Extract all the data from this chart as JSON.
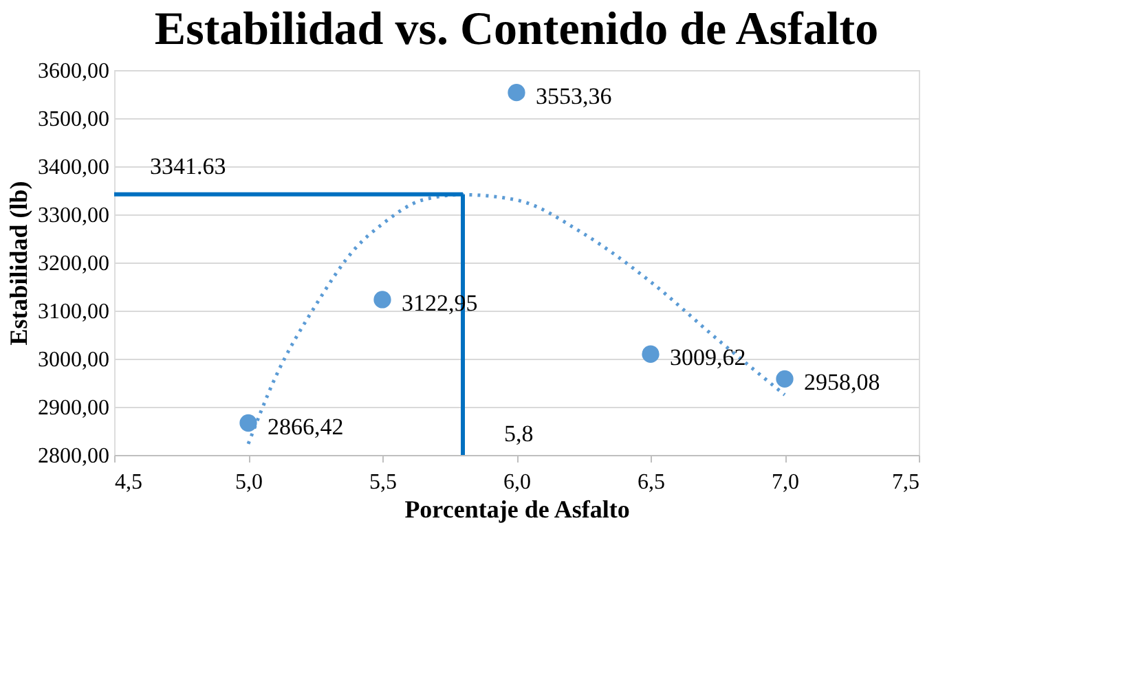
{
  "chart_data": {
    "type": "scatter",
    "title": "Estabilidad vs. Contenido de Asfalto",
    "xlabel": "Porcentaje de Asfalto",
    "ylabel": "Estabilidad (lb)",
    "x": [
      5.0,
      5.5,
      6.0,
      6.5,
      7.0
    ],
    "series": [
      {
        "color": "#5b9bd5",
        "values": [
          2866.42,
          3122.95,
          3553.36,
          3009.62,
          2958.08
        ],
        "value_labels": [
          "2866,42",
          "3122,95",
          "3553,36",
          "3009,62",
          "2958,08"
        ],
        "marker": "circle"
      },
      {
        "type": "line",
        "color": "#5b9bd5",
        "line_style": "dotted",
        "marker": "none",
        "x": [
          5.0,
          5.1,
          5.25,
          5.4,
          5.5,
          5.65,
          5.8,
          6.0,
          6.25,
          6.5,
          6.75,
          7.0
        ],
        "values": [
          2823,
          2960,
          3110,
          3230,
          3280,
          3330,
          3341,
          3330,
          3260,
          3160,
          3040,
          2925
        ]
      }
    ],
    "ref_lines": [
      {
        "axis": "y",
        "value": 3341.63,
        "label": "3341.63",
        "color": "#0070c0"
      },
      {
        "axis": "x",
        "value": 5.8,
        "label": "5,8",
        "color": "#0070c0"
      }
    ],
    "xlim": [
      4.5,
      7.5
    ],
    "ylim": [
      2800,
      3600
    ],
    "xticks": [
      {
        "value": 4.5,
        "label": "4,5"
      },
      {
        "value": 5.0,
        "label": "5,0"
      },
      {
        "value": 5.5,
        "label": "5,5"
      },
      {
        "value": 6.0,
        "label": "6,0"
      },
      {
        "value": 6.5,
        "label": "6,5"
      },
      {
        "value": 7.0,
        "label": "7,0"
      },
      {
        "value": 7.5,
        "label": "7,5"
      }
    ],
    "yticks": [
      {
        "value": 2800,
        "label": "2800,00"
      },
      {
        "value": 2900,
        "label": "2900,00"
      },
      {
        "value": 3000,
        "label": "3000,00"
      },
      {
        "value": 3100,
        "label": "3100,00"
      },
      {
        "value": 3200,
        "label": "3200,00"
      },
      {
        "value": 3300,
        "label": "3300,00"
      },
      {
        "value": 3400,
        "label": "3400,00"
      },
      {
        "value": 3500,
        "label": "3500,00"
      },
      {
        "value": 3600,
        "label": "3600,00"
      }
    ],
    "grid": "y"
  }
}
